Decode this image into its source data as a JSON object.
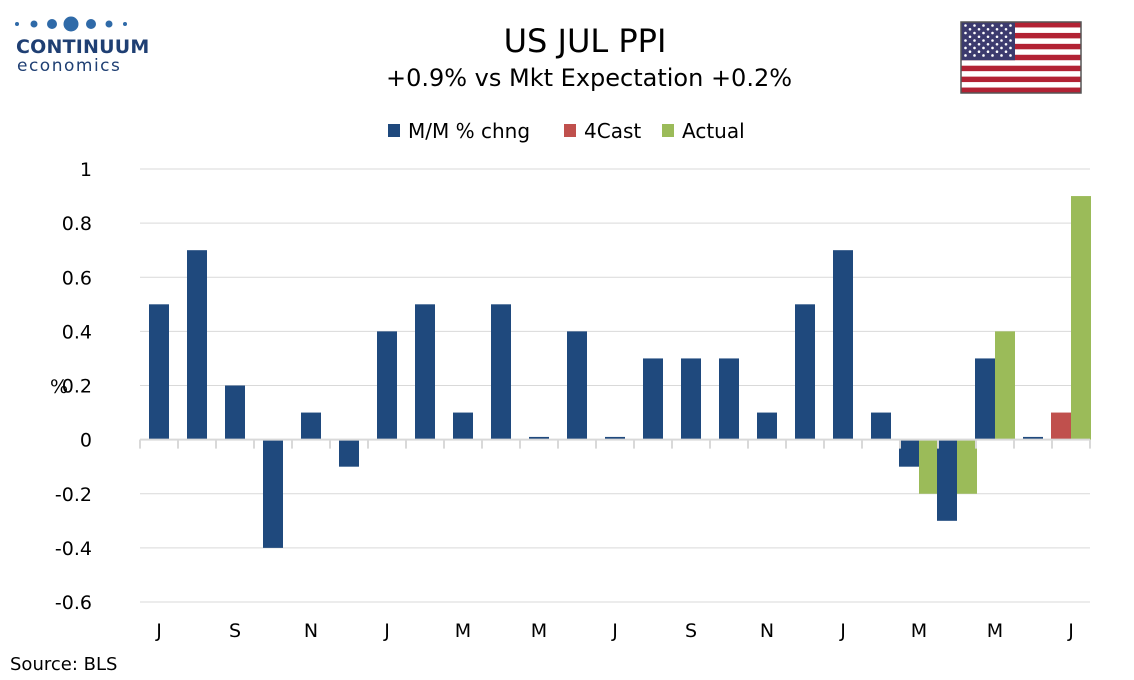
{
  "logo": {
    "name": "CONTINUUM",
    "sub": "economics"
  },
  "flag": "us-flag",
  "source": "Source: BLS",
  "colors": {
    "mm": "#1f497d",
    "forecast": "#c0504d",
    "actual": "#9bbb59",
    "grid": "#d9d9d9",
    "axis": "#d9d9d9"
  },
  "chart_data": {
    "type": "bar",
    "title": "US JUL PPI",
    "subtitle": "+0.9% vs Mkt Expectation +0.2%",
    "ylabel": "%",
    "xlabel": "",
    "ylim": [
      -0.6,
      1
    ],
    "yticks": [
      1,
      0.8,
      0.6,
      0.4,
      0.2,
      0,
      -0.2,
      -0.4,
      -0.6
    ],
    "ytick_labels": [
      "1",
      "0.8",
      "0.6",
      "0.4",
      "0.2",
      "0",
      "-0.2",
      "-0.4",
      "-0.6"
    ],
    "grid": true,
    "legend_position": "top-center",
    "x_tick_labels": [
      "J",
      "",
      "S",
      "",
      "N",
      "",
      "J",
      "",
      "M",
      "",
      "M",
      "",
      "J",
      "",
      "S",
      "",
      "N",
      "",
      "J",
      "",
      "M",
      "",
      "M",
      "",
      "J"
    ],
    "series": [
      {
        "name": "M/M % chng",
        "color": "#1f497d",
        "values": [
          0.5,
          0.7,
          0.2,
          -0.4,
          0.1,
          -0.1,
          0.4,
          0.5,
          0.1,
          0.5,
          0.01,
          0.4,
          0.01,
          0.3,
          0.3,
          0.3,
          0.1,
          0.5,
          0.7,
          0.1,
          -0.1,
          -0.3,
          0.3,
          0.01,
          null
        ]
      },
      {
        "name": "4Cast",
        "color": "#c0504d",
        "values": [
          null,
          null,
          null,
          null,
          null,
          null,
          null,
          null,
          null,
          null,
          null,
          null,
          null,
          null,
          null,
          null,
          null,
          null,
          null,
          null,
          null,
          null,
          null,
          null,
          0.1
        ]
      },
      {
        "name": "Actual",
        "color": "#9bbb59",
        "values": [
          null,
          null,
          null,
          null,
          null,
          null,
          null,
          null,
          null,
          null,
          null,
          null,
          null,
          null,
          null,
          null,
          null,
          null,
          null,
          null,
          -0.2,
          -0.2,
          0.4,
          null,
          0.9
        ]
      }
    ]
  }
}
